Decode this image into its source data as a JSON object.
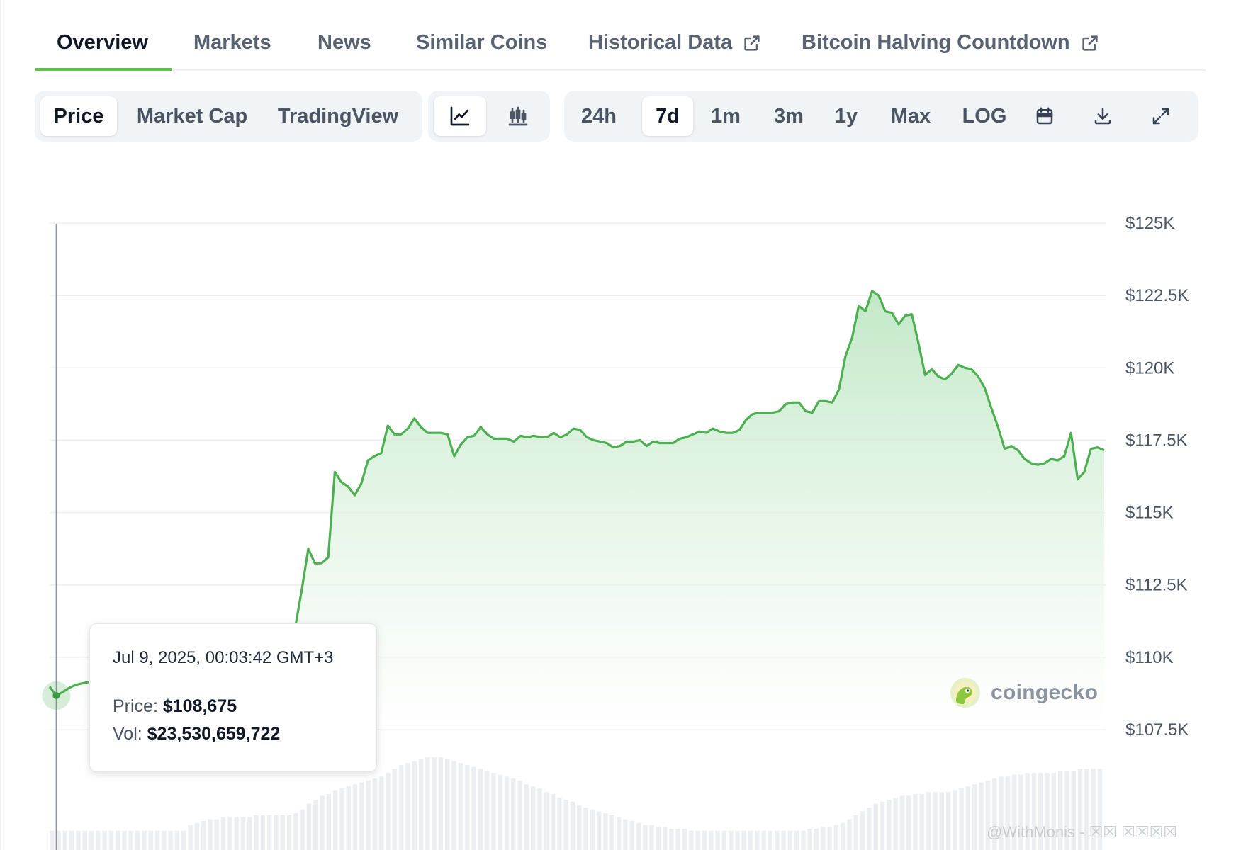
{
  "tabs": [
    {
      "label": "Overview",
      "active": true
    },
    {
      "label": "Markets"
    },
    {
      "label": "News"
    },
    {
      "label": "Similar Coins"
    },
    {
      "label": "Historical Data",
      "icon": "external-link-icon"
    },
    {
      "label": "Bitcoin Halving Countdown",
      "icon": "external-link-icon"
    }
  ],
  "toolbar": {
    "metric": {
      "price": "Price",
      "market_cap": "Market Cap",
      "tradingview": "TradingView",
      "selected": "Price"
    },
    "chart_style": {
      "line_icon": "line-chart-icon",
      "candle_icon": "candlestick-icon",
      "selected": "line"
    },
    "range": {
      "h24": "24h",
      "d7": "7d",
      "m1": "1m",
      "m3": "3m",
      "y1": "1y",
      "max": "Max",
      "log": "LOG",
      "selected": "7d"
    },
    "actions": {
      "calendar": "calendar-icon",
      "download": "download-icon",
      "fullscreen": "expand-icon"
    }
  },
  "tooltip": {
    "date": "Jul 9, 2025, 00:03:42 GMT+3",
    "price_label": "Price:",
    "price_value": "$108,675",
    "vol_label": "Vol:",
    "vol_value": "$23,530,659,722"
  },
  "watermark": {
    "text": "coingecko"
  },
  "credit": "@WithMonis - ☒☒ ☒☒☒☒",
  "colors": {
    "line": "#4caf50",
    "fill_top": "#c8ebcc",
    "accent": "#5fbf4a",
    "volume": "#e9ecef"
  },
  "chart_data": {
    "type": "area",
    "title": "",
    "xlabel": "",
    "ylabel": "",
    "ylim": [
      107500,
      125000
    ],
    "yticks": [
      {
        "value": 125000,
        "label": "$125K"
      },
      {
        "value": 122500,
        "label": "$122.5K"
      },
      {
        "value": 120000,
        "label": "$120K"
      },
      {
        "value": 117500,
        "label": "$117.5K"
      },
      {
        "value": 115000,
        "label": "$115K"
      },
      {
        "value": 112500,
        "label": "$112.5K"
      },
      {
        "value": 110000,
        "label": "$110K"
      },
      {
        "value": 107500,
        "label": "$107.5K"
      }
    ],
    "grid": true,
    "legend": "none",
    "price_series": [
      108980,
      108675,
      108800,
      108950,
      109050,
      109100,
      109150,
      109200,
      109400,
      109700,
      109900,
      110050,
      110150,
      110250,
      110300,
      110350,
      110400,
      110450,
      110500,
      110520,
      110550,
      111050,
      110650,
      110900,
      110850,
      110750,
      110800,
      110700,
      110750,
      110720,
      110700,
      110750,
      110750,
      110700,
      110650,
      110800,
      110900,
      111000,
      112300,
      113750,
      113250,
      113250,
      113450,
      116400,
      116050,
      115900,
      115600,
      116000,
      116800,
      116950,
      117050,
      118000,
      117700,
      117700,
      117900,
      118250,
      117950,
      117750,
      117750,
      117750,
      117700,
      116950,
      117350,
      117600,
      117650,
      117950,
      117700,
      117550,
      117550,
      117550,
      117450,
      117650,
      117600,
      117650,
      117600,
      117600,
      117750,
      117600,
      117700,
      117900,
      117850,
      117600,
      117500,
      117450,
      117400,
      117250,
      117300,
      117450,
      117450,
      117500,
      117300,
      117450,
      117400,
      117400,
      117400,
      117550,
      117600,
      117700,
      117800,
      117750,
      117900,
      117800,
      117750,
      117750,
      117850,
      118200,
      118400,
      118450,
      118450,
      118450,
      118500,
      118750,
      118800,
      118800,
      118500,
      118450,
      118850,
      118850,
      118800,
      119250,
      120400,
      121050,
      122150,
      121950,
      122650,
      122500,
      121950,
      121900,
      121500,
      121800,
      121850,
      120850,
      119750,
      119950,
      119700,
      119600,
      119800,
      120100,
      120000,
      119950,
      119700,
      119300,
      118600,
      117950,
      117200,
      117300,
      117150,
      116850,
      116700,
      116650,
      116700,
      116850,
      116800,
      116950,
      117750,
      116150,
      116400,
      117200,
      117250,
      117150
    ],
    "volume_series": [
      0.1,
      0.1,
      0.1,
      0.1,
      0.1,
      0.1,
      0.1,
      0.1,
      0.1,
      0.1,
      0.1,
      0.1,
      0.1,
      0.1,
      0.1,
      0.1,
      0.1,
      0.1,
      0.1,
      0.1,
      0.1,
      0.13,
      0.14,
      0.15,
      0.16,
      0.16,
      0.17,
      0.17,
      0.17,
      0.17,
      0.17,
      0.18,
      0.18,
      0.18,
      0.18,
      0.18,
      0.18,
      0.19,
      0.21,
      0.24,
      0.26,
      0.28,
      0.29,
      0.31,
      0.32,
      0.33,
      0.34,
      0.35,
      0.36,
      0.37,
      0.38,
      0.4,
      0.42,
      0.44,
      0.45,
      0.46,
      0.47,
      0.48,
      0.48,
      0.48,
      0.47,
      0.46,
      0.45,
      0.44,
      0.43,
      0.42,
      0.41,
      0.4,
      0.39,
      0.38,
      0.37,
      0.36,
      0.34,
      0.33,
      0.32,
      0.3,
      0.29,
      0.27,
      0.26,
      0.25,
      0.23,
      0.22,
      0.21,
      0.2,
      0.19,
      0.18,
      0.17,
      0.16,
      0.15,
      0.14,
      0.13,
      0.13,
      0.12,
      0.12,
      0.11,
      0.11,
      0.11,
      0.1,
      0.1,
      0.1,
      0.1,
      0.1,
      0.1,
      0.1,
      0.1,
      0.1,
      0.1,
      0.1,
      0.1,
      0.1,
      0.1,
      0.1,
      0.1,
      0.1,
      0.1,
      0.11,
      0.11,
      0.12,
      0.12,
      0.13,
      0.14,
      0.16,
      0.18,
      0.2,
      0.22,
      0.24,
      0.25,
      0.26,
      0.27,
      0.28,
      0.28,
      0.29,
      0.29,
      0.3,
      0.3,
      0.3,
      0.3,
      0.31,
      0.32,
      0.33,
      0.34,
      0.35,
      0.36,
      0.37,
      0.38,
      0.38,
      0.39,
      0.39,
      0.4,
      0.4,
      0.4,
      0.4,
      0.4,
      0.41,
      0.41,
      0.41,
      0.42,
      0.42,
      0.42,
      0.42
    ]
  }
}
